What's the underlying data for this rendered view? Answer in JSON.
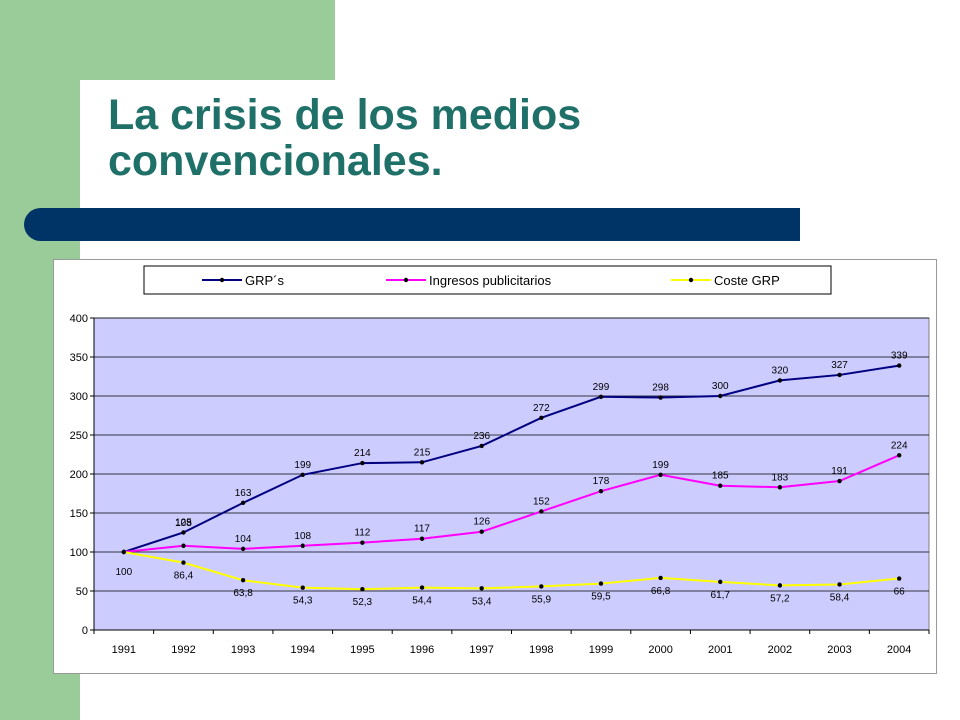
{
  "slide": {
    "title_line1": "La crisis de los medios",
    "title_line2": "convencionales."
  },
  "colors": {
    "sidebar_green": "#99cc99",
    "title_teal": "#1f7068",
    "bar_navy": "#003366",
    "plot_background": "#ccccff",
    "series_grps": "#000080",
    "series_ingresos": "#ff00ff",
    "series_coste": "#ffff00"
  },
  "chart_data": {
    "type": "line",
    "categories": [
      "1991",
      "1992",
      "1993",
      "1994",
      "1995",
      "1996",
      "1997",
      "1998",
      "1999",
      "2000",
      "2001",
      "2002",
      "2003",
      "2004"
    ],
    "ylim": [
      0,
      400
    ],
    "yticks": [
      0,
      50,
      100,
      150,
      200,
      250,
      300,
      350,
      400
    ],
    "grid": true,
    "legend_position": "top",
    "series": [
      {
        "name": "GRP´s",
        "color": "#000080",
        "values": [
          100,
          125,
          163,
          199,
          214,
          215,
          236,
          272,
          299,
          298,
          300,
          320,
          327,
          339
        ],
        "labels": [
          "100",
          "125",
          "163",
          "199",
          "214",
          "215",
          "236",
          "272",
          "299",
          "298",
          "300",
          "320",
          "327",
          "339"
        ]
      },
      {
        "name": "Ingresos publicitarios",
        "color": "#ff00ff",
        "values": [
          100,
          108,
          104,
          108,
          112,
          117,
          126,
          152,
          178,
          199,
          185,
          183,
          191,
          224
        ],
        "labels": [
          "",
          "108",
          "104",
          "108",
          "112",
          "117",
          "126",
          "152",
          "178",
          "199",
          "185",
          "183",
          "191",
          "224"
        ]
      },
      {
        "name": "Coste GRP",
        "color": "#ffff00",
        "values": [
          100,
          86.4,
          63.8,
          54.3,
          52.3,
          54.4,
          53.4,
          55.9,
          59.5,
          66.8,
          61.7,
          57.2,
          58.4,
          66
        ],
        "labels": [
          "",
          "86,4",
          "63,8",
          "54,3",
          "52,3",
          "54,4",
          "53,4",
          "55,9",
          "59,5",
          "66,8",
          "61,7",
          "57,2",
          "58,4",
          "66"
        ]
      }
    ]
  }
}
